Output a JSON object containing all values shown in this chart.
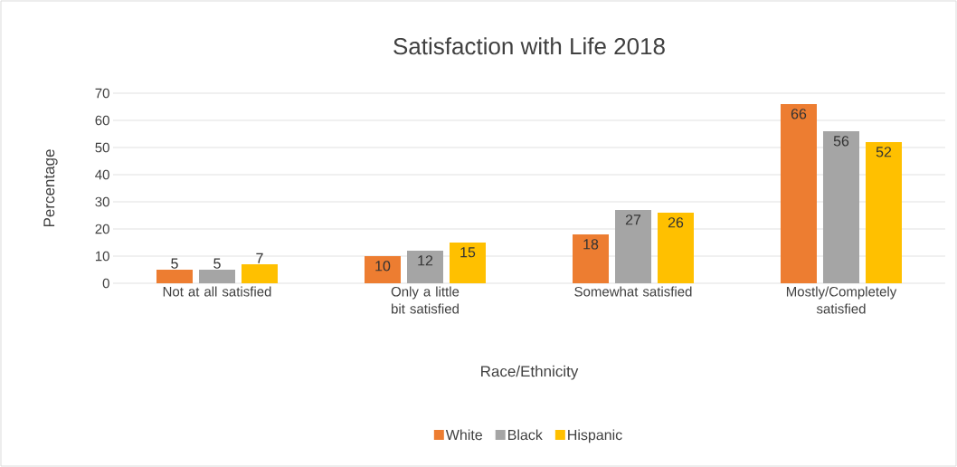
{
  "chart_data": {
    "type": "bar",
    "title": "Satisfaction with Life 2018",
    "xlabel": "Race/Ethnicity",
    "ylabel": "Percentage",
    "categories": [
      "Not at all satisfied",
      "Only a little bit satisfied",
      "Somewhat satisfied",
      "Mostly/Completely satisfied"
    ],
    "series": [
      {
        "name": "White",
        "color": "#ed7d31",
        "values": [
          5,
          10,
          18,
          66
        ]
      },
      {
        "name": "Black",
        "color": "#a5a5a5",
        "values": [
          5,
          12,
          27,
          56
        ]
      },
      {
        "name": "Hispanic",
        "color": "#ffc000",
        "values": [
          7,
          15,
          26,
          52
        ]
      }
    ],
    "ylim": [
      0,
      70
    ],
    "yticks": [
      0,
      10,
      20,
      30,
      40,
      50,
      60,
      70
    ],
    "grid": "y",
    "legend": "bottom",
    "data_labels": true
  }
}
